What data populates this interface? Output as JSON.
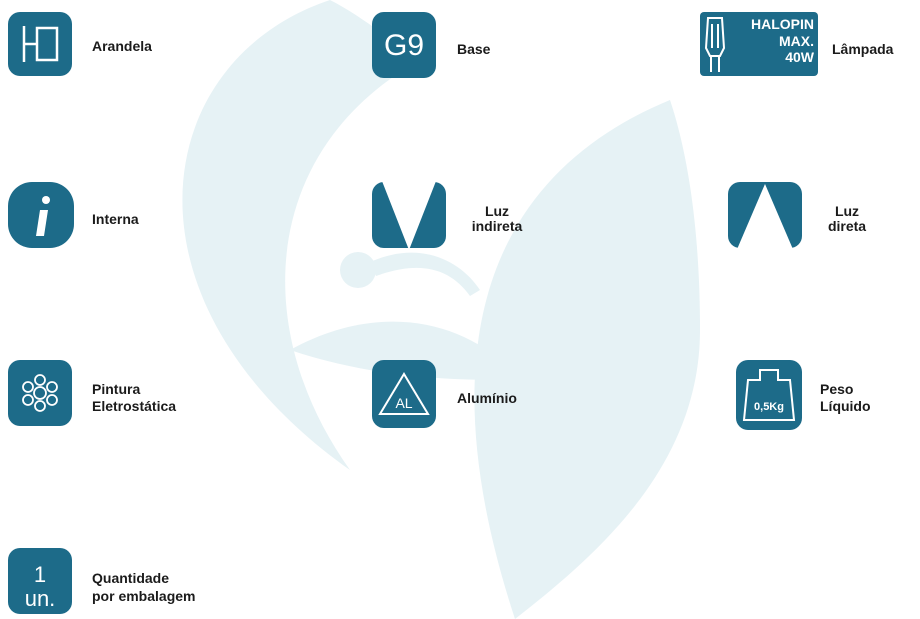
{
  "items": [
    {
      "label": [
        "Arandela"
      ]
    },
    {
      "icon_text": [
        "G9"
      ],
      "label": [
        "Base"
      ]
    },
    {
      "icon_text": [
        "HALOPIN",
        "MAX.",
        "40W"
      ],
      "label": [
        "Lâmpada"
      ]
    },
    {
      "label": [
        "Interna"
      ]
    },
    {
      "label": [
        "Luz",
        "indireta"
      ]
    },
    {
      "label": [
        "Luz",
        "direta"
      ]
    },
    {
      "label": [
        "Pintura",
        "Eletrostática"
      ]
    },
    {
      "icon_text": [
        "AL"
      ],
      "label": [
        "Alumínio"
      ]
    },
    {
      "icon_text": [
        "0,5Kg"
      ],
      "label": [
        "Peso",
        "Líquido"
      ]
    },
    {
      "icon_text": [
        "1",
        "un."
      ],
      "label": [
        "Quantidade",
        "por embalagem"
      ]
    }
  ]
}
